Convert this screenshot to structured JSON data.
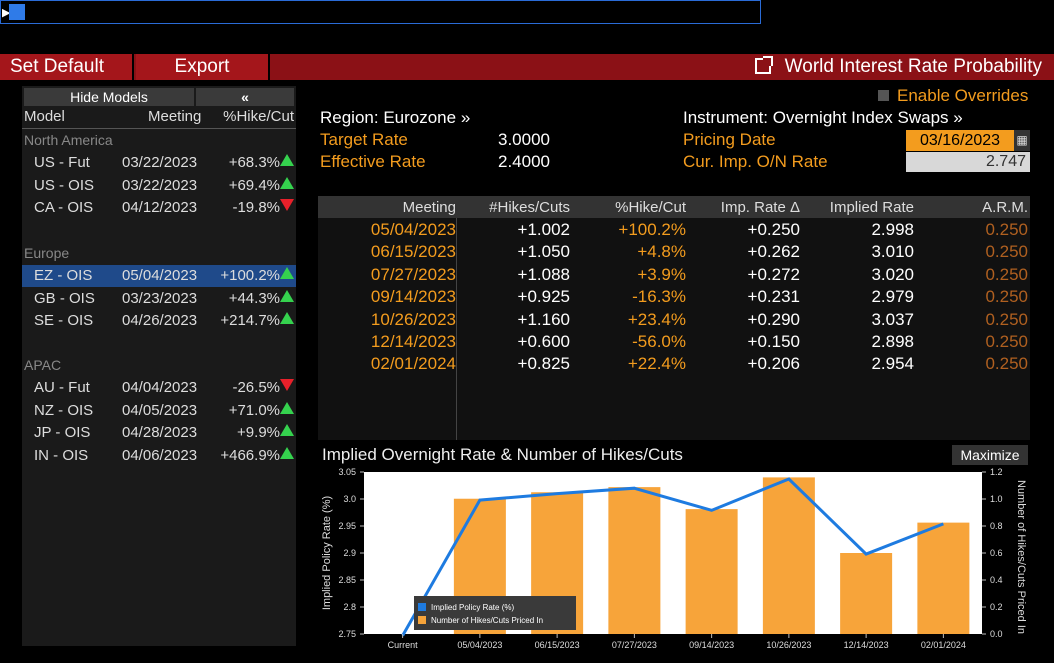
{
  "menu": {
    "set_default": "Set Default",
    "export": "Export",
    "title": "World Interest Rate Probability"
  },
  "left_panel": {
    "hide_models": "Hide Models",
    "collapse": "«",
    "headers": {
      "model": "Model",
      "meeting": "Meeting",
      "pct": "%Hike/Cut"
    },
    "groups": [
      {
        "name": "North America",
        "rows": [
          {
            "model": "US - Fut",
            "meeting": "03/22/2023",
            "pct": "+68.3%",
            "dir": "up"
          },
          {
            "model": "US - OIS",
            "meeting": "03/22/2023",
            "pct": "+69.4%",
            "dir": "up"
          },
          {
            "model": "CA - OIS",
            "meeting": "04/12/2023",
            "pct": "-19.8%",
            "dir": "down"
          }
        ]
      },
      {
        "name": "Europe",
        "rows": [
          {
            "model": "EZ - OIS",
            "meeting": "05/04/2023",
            "pct": "+100.2%",
            "dir": "up",
            "selected": true
          },
          {
            "model": "GB - OIS",
            "meeting": "03/23/2023",
            "pct": "+44.3%",
            "dir": "up"
          },
          {
            "model": "SE - OIS",
            "meeting": "04/26/2023",
            "pct": "+214.7%",
            "dir": "up"
          }
        ]
      },
      {
        "name": "APAC",
        "rows": [
          {
            "model": "AU - Fut",
            "meeting": "04/04/2023",
            "pct": "-26.5%",
            "dir": "down"
          },
          {
            "model": "NZ - OIS",
            "meeting": "04/05/2023",
            "pct": "+71.0%",
            "dir": "up"
          },
          {
            "model": "JP - OIS",
            "meeting": "04/28/2023",
            "pct": "+9.9%",
            "dir": "up"
          },
          {
            "model": "IN - OIS",
            "meeting": "04/06/2023",
            "pct": "+466.9%",
            "dir": "up"
          }
        ]
      }
    ]
  },
  "info": {
    "region": "Region: Eurozone »",
    "target_label": "Target Rate",
    "target_value": "3.0000",
    "effective_label": "Effective Rate",
    "effective_value": "2.4000",
    "instrument": "Instrument: Overnight Index Swaps »",
    "pricing_label": "Pricing Date",
    "pricing_value": "03/16/2023",
    "imp_label": "Cur. Imp. O/N Rate",
    "imp_value": "2.747",
    "enable_overrides": "Enable Overrides"
  },
  "table": {
    "headers": [
      "Meeting",
      "#Hikes/Cuts",
      "%Hike/Cut",
      "Imp. Rate Δ",
      "Implied Rate",
      "A.R.M."
    ],
    "rows": [
      [
        "05/04/2023",
        "+1.002",
        "+100.2%",
        "+0.250",
        "2.998",
        "0.250"
      ],
      [
        "06/15/2023",
        "+1.050",
        "+4.8%",
        "+0.262",
        "3.010",
        "0.250"
      ],
      [
        "07/27/2023",
        "+1.088",
        "+3.9%",
        "+0.272",
        "3.020",
        "0.250"
      ],
      [
        "09/14/2023",
        "+0.925",
        "-16.3%",
        "+0.231",
        "2.979",
        "0.250"
      ],
      [
        "10/26/2023",
        "+1.160",
        "+23.4%",
        "+0.290",
        "3.037",
        "0.250"
      ],
      [
        "12/14/2023",
        "+0.600",
        "-56.0%",
        "+0.150",
        "2.898",
        "0.250"
      ],
      [
        "02/01/2024",
        "+0.825",
        "+22.4%",
        "+0.206",
        "2.954",
        "0.250"
      ]
    ]
  },
  "chart_title": "Implied Overnight Rate & Number of Hikes/Cuts",
  "maximize": "Maximize",
  "chart_data": {
    "type": "bar",
    "categories": [
      "Current",
      "05/04/2023",
      "06/15/2023",
      "07/27/2023",
      "09/14/2023",
      "10/26/2023",
      "12/14/2023",
      "02/01/2024"
    ],
    "series": [
      {
        "name": "Implied Policy Rate (%)",
        "kind": "line",
        "axis": "left",
        "color": "#1e7be0",
        "values": [
          2.747,
          2.998,
          3.01,
          3.02,
          2.979,
          3.037,
          2.898,
          2.954
        ]
      },
      {
        "name": "Number of Hikes/Cuts Priced In",
        "kind": "bar",
        "axis": "right",
        "color": "#f7a43a",
        "values": [
          0,
          1.002,
          1.05,
          1.088,
          0.925,
          1.16,
          0.6,
          0.825
        ]
      }
    ],
    "ylabel": "Implied Policy Rate (%)",
    "y2label": "Number of Hikes/Cuts Priced In",
    "ylim": [
      2.75,
      3.05
    ],
    "y2lim": [
      0,
      1.2
    ],
    "yticks": [
      "2.75",
      "2.8",
      "2.85",
      "2.9",
      "2.95",
      "3.0",
      "3.05"
    ],
    "y2ticks": [
      "0.0",
      "0.2",
      "0.4",
      "0.6",
      "0.8",
      "1.0",
      "1.2"
    ],
    "legend": "bottom-left"
  }
}
